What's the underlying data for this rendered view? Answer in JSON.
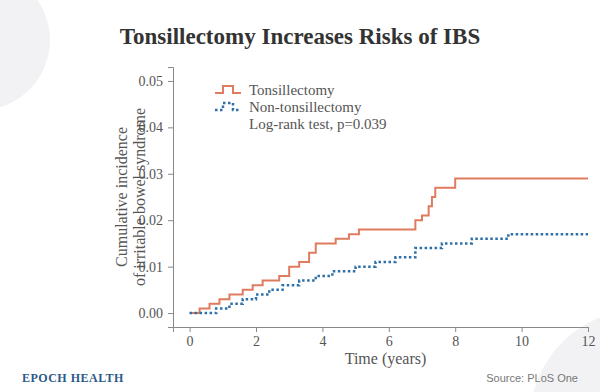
{
  "chart_data": {
    "type": "step",
    "title": "Tonsillectomy Increases Risks of IBS",
    "x_label": "Time (years)",
    "y_label": [
      "Cumulative incidence",
      "of irritable bowel syndrome"
    ],
    "annotation": "Log-rank test, p=0.039",
    "brand": "EPOCH HEALTH",
    "source": "Source: PLoS One",
    "legend": "top-left",
    "grid": false,
    "xlim": [
      -0.5,
      12
    ],
    "xticks": [
      0,
      2,
      4,
      6,
      8,
      10,
      12
    ],
    "ylim": [
      -0.003,
      0.053
    ],
    "yticks": [
      {
        "value": 0,
        "label": "0.00"
      },
      0.01,
      0.02,
      0.03,
      0.04,
      0.05
    ],
    "series": [
      {
        "name": "Tonsillectomy",
        "color": "#e07b5f",
        "line_style": "solid",
        "x": [
          0,
          0.3,
          0.6,
          0.9,
          1.2,
          1.6,
          1.9,
          2.2,
          2.7,
          3.0,
          3.3,
          3.6,
          3.8,
          4.4,
          4.8,
          5.1,
          6.8,
          7.0,
          7.2,
          7.3,
          7.4,
          8.0,
          12.0
        ],
        "values": [
          0,
          0.001,
          0.002,
          0.003,
          0.004,
          0.005,
          0.006,
          0.007,
          0.008,
          0.01,
          0.011,
          0.013,
          0.015,
          0.016,
          0.017,
          0.018,
          0.02,
          0.021,
          0.023,
          0.025,
          0.027,
          0.029,
          0.029
        ]
      },
      {
        "name": "Non-tonsillectomy",
        "color": "#2f6fa8",
        "line_style": "dotted",
        "x": [
          0,
          0.8,
          1.2,
          1.6,
          2.0,
          2.4,
          2.8,
          3.3,
          3.8,
          4.3,
          5.0,
          5.6,
          6.2,
          6.8,
          7.6,
          8.5,
          9.6,
          12.0
        ],
        "values": [
          0,
          0.001,
          0.002,
          0.003,
          0.004,
          0.005,
          0.006,
          0.007,
          0.008,
          0.009,
          0.01,
          0.011,
          0.012,
          0.014,
          0.015,
          0.016,
          0.017,
          0.017
        ]
      }
    ]
  }
}
